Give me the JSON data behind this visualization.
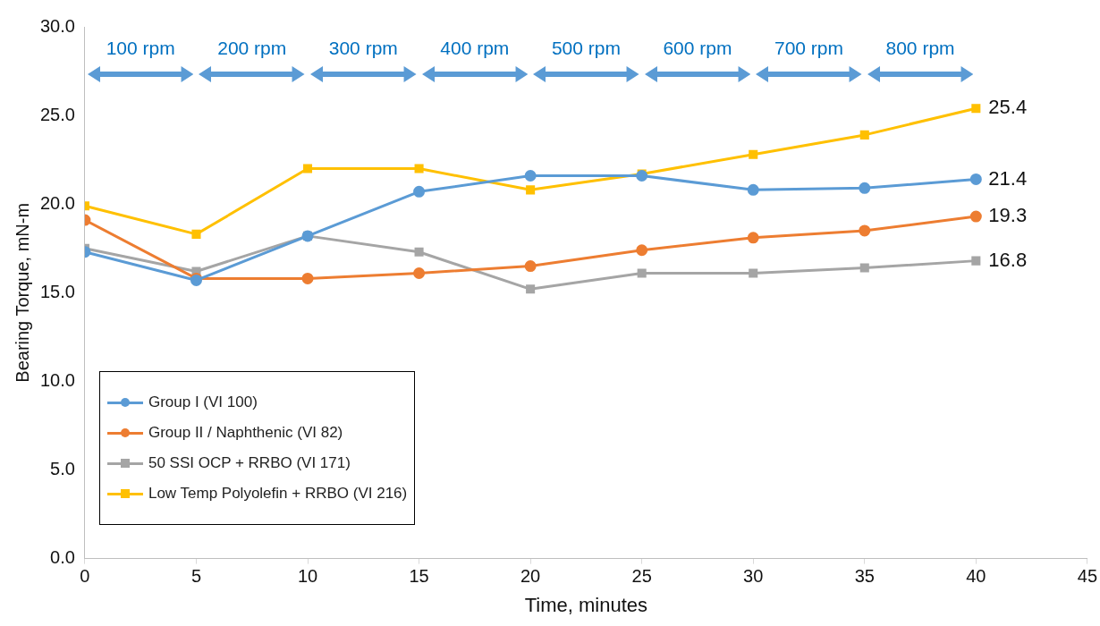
{
  "chart_data": {
    "type": "line",
    "xlabel": "Time, minutes",
    "ylabel": "Bearing Torque, mN-m",
    "x": [
      0,
      5,
      10,
      15,
      20,
      25,
      30,
      35,
      40
    ],
    "series": [
      {
        "name": "Group I (VI 100)",
        "color": "#5b9bd5",
        "marker": "circle",
        "values": [
          17.3,
          15.7,
          18.2,
          20.7,
          21.6,
          21.6,
          20.8,
          20.9,
          21.4
        ],
        "value_labels": [
          null,
          null,
          null,
          null,
          null,
          null,
          null,
          null,
          "21.4"
        ]
      },
      {
        "name": "Group II / Naphthenic (VI 82)",
        "color": "#ed7d31",
        "marker": "circle",
        "values": [
          19.1,
          15.8,
          15.8,
          16.1,
          16.5,
          17.4,
          18.1,
          18.5,
          19.3
        ],
        "value_labels": [
          null,
          null,
          null,
          null,
          null,
          null,
          null,
          null,
          "19.3"
        ]
      },
      {
        "name": "50 SSI OCP + RRBO (VI 171)",
        "color": "#a5a5a5",
        "marker": "square",
        "values": [
          17.5,
          16.2,
          18.2,
          17.3,
          15.2,
          16.1,
          16.1,
          16.4,
          16.8
        ],
        "value_labels": [
          null,
          null,
          null,
          null,
          null,
          null,
          null,
          null,
          "16.8"
        ]
      },
      {
        "name": "Low Temp Polyolefin + RRBO (VI 216)",
        "color": "#ffc000",
        "marker": "square",
        "values": [
          19.9,
          18.3,
          22.0,
          22.0,
          20.8,
          21.7,
          22.8,
          23.9,
          25.4
        ],
        "value_labels": [
          null,
          null,
          null,
          null,
          null,
          null,
          null,
          null,
          "25.4"
        ]
      }
    ],
    "xlim": [
      0,
      45
    ],
    "xticks": [
      0,
      5,
      10,
      15,
      20,
      25,
      30,
      35,
      40,
      45
    ],
    "ylim": [
      0,
      30
    ],
    "yticks": [
      {
        "value": 0,
        "label": "0.0"
      },
      {
        "value": 5,
        "label": "5.0"
      },
      {
        "value": 10,
        "label": "10.0"
      },
      {
        "value": 15,
        "label": "15.0"
      },
      {
        "value": 20,
        "label": "20.0"
      },
      {
        "value": 25,
        "label": "25.0"
      },
      {
        "value": 30,
        "label": "30.0"
      }
    ],
    "annotations": [
      "100 rpm",
      "200 rpm",
      "300 rpm",
      "400 rpm",
      "500 rpm",
      "600 rpm",
      "700 rpm",
      "800 rpm"
    ],
    "grid": false,
    "legend": "bottom left",
    "line_style": "solid"
  }
}
